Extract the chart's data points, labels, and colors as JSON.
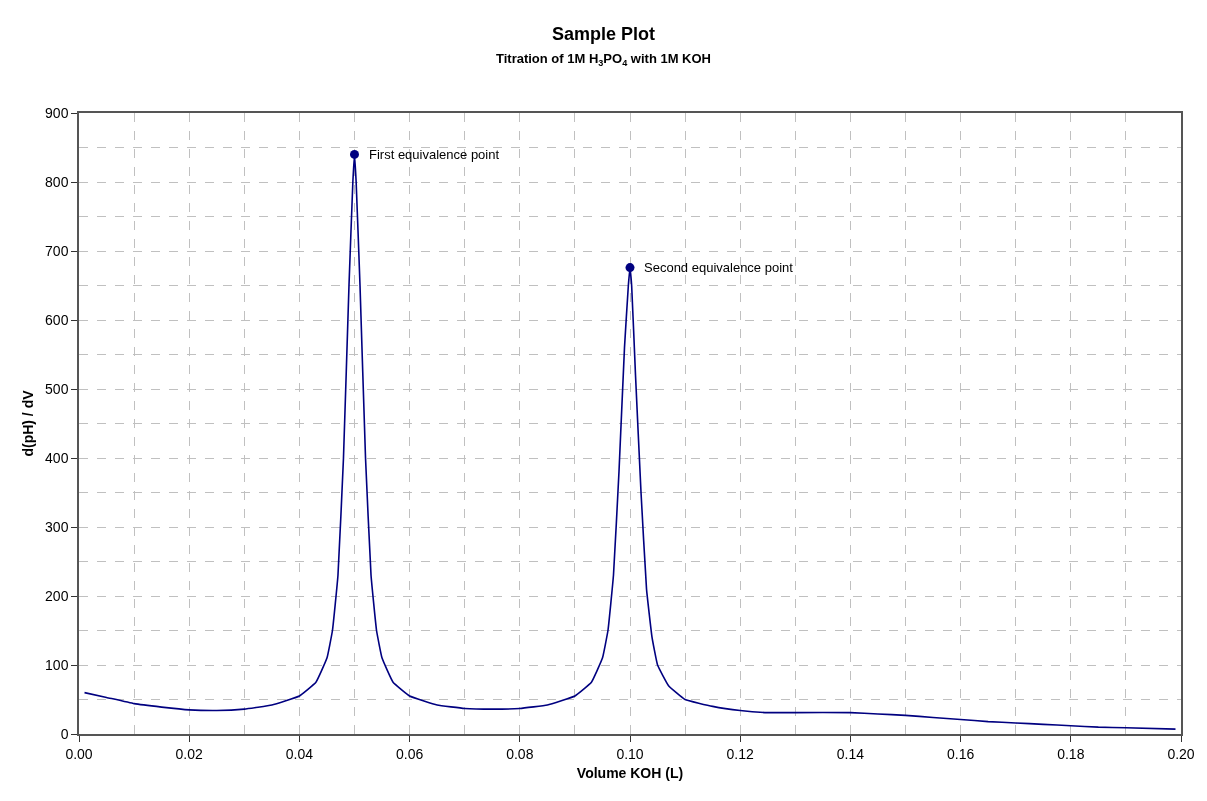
{
  "chart_data": {
    "type": "line",
    "title": "Sample Plot",
    "subtitle": "Titration of 1M H$_{3}$PO$_{4}$ with 1M KOH",
    "xlabel": "Volume KOH (L)",
    "ylabel": "d(pH) / dV",
    "x": [
      0.001,
      0.005,
      0.01,
      0.015,
      0.02,
      0.025,
      0.03,
      0.035,
      0.04,
      0.043,
      0.045,
      0.046,
      0.047,
      0.048,
      0.049,
      0.0497,
      0.05,
      0.0503,
      0.051,
      0.052,
      0.053,
      0.054,
      0.055,
      0.057,
      0.06,
      0.065,
      0.07,
      0.075,
      0.08,
      0.085,
      0.09,
      0.093,
      0.095,
      0.096,
      0.097,
      0.098,
      0.099,
      0.0997,
      0.1,
      0.1003,
      0.101,
      0.102,
      0.103,
      0.104,
      0.105,
      0.107,
      0.11,
      0.115,
      0.12,
      0.125,
      0.13,
      0.14,
      0.145,
      0.15,
      0.155,
      0.16,
      0.165,
      0.17,
      0.175,
      0.18,
      0.185,
      0.19,
      0.199
    ],
    "series": [
      {
        "color": "#000080",
        "values": [
          60,
          53,
          44,
          39,
          35,
          34,
          36,
          42,
          55,
          75,
          110,
          150,
          230,
          400,
          650,
          800,
          840,
          800,
          650,
          400,
          230,
          150,
          110,
          75,
          55,
          42,
          37,
          36,
          37,
          42,
          55,
          75,
          110,
          150,
          230,
          380,
          560,
          650,
          676,
          650,
          520,
          350,
          210,
          140,
          100,
          70,
          50,
          40,
          34,
          31,
          31,
          31,
          29,
          27,
          24,
          21,
          18,
          16,
          14,
          12,
          10,
          9,
          7
        ]
      },
      {
        "type": "scatter",
        "color": "#000080",
        "marker": "circle",
        "x": [
          0.05,
          0.1
        ],
        "values": [
          840,
          676
        ]
      }
    ],
    "annotations": [
      {
        "text": "First equivalence point",
        "x": 0.05,
        "y": 840
      },
      {
        "text": "Second equivalence point",
        "x": 0.1,
        "y": 676
      }
    ],
    "xlim": [
      0,
      0.2
    ],
    "xticks": [
      {
        "value": 0,
        "label": "0.00"
      },
      0.02,
      0.04,
      0.06,
      0.08,
      {
        "value": 0.1,
        "label": "0.10"
      },
      0.12,
      0.14,
      0.16,
      0.18,
      {
        "value": 0.2,
        "label": "0.20"
      }
    ],
    "ylim": [
      0,
      900
    ],
    "yticks": [
      0,
      100,
      200,
      300,
      400,
      500,
      600,
      700,
      800,
      900
    ],
    "grid": true,
    "line_style": "solid"
  }
}
